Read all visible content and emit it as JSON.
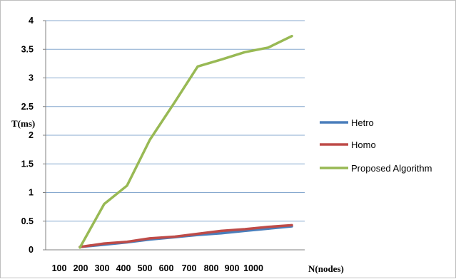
{
  "chart_data": {
    "type": "line",
    "title": "",
    "xlabel": "N(nodes)",
    "ylabel": "T(ms)",
    "categories": [
      "100",
      "200",
      "300",
      "400",
      "500",
      "600",
      "700",
      "800",
      "900",
      "1000"
    ],
    "ylim": [
      0,
      4
    ],
    "yticks": [
      "0",
      "0.5",
      "1",
      "1.5",
      "2",
      "2.5",
      "3",
      "3.5",
      "4"
    ],
    "grid": true,
    "legend_position": "right",
    "series": [
      {
        "name": "Hetro",
        "color": "#4a7ebb",
        "values": [
          0.05,
          0.09,
          0.13,
          0.18,
          0.22,
          0.26,
          0.29,
          0.33,
          0.37,
          0.41
        ]
      },
      {
        "name": "Homo",
        "color": "#be4b48",
        "values": [
          0.05,
          0.11,
          0.14,
          0.2,
          0.23,
          0.28,
          0.33,
          0.36,
          0.4,
          0.43
        ]
      },
      {
        "name": "Proposed Algorithm",
        "color": "#98b954",
        "values": [
          0.04,
          0.8,
          1.12,
          1.92,
          2.58,
          3.2,
          3.32,
          3.45,
          3.53,
          3.73
        ]
      }
    ]
  }
}
